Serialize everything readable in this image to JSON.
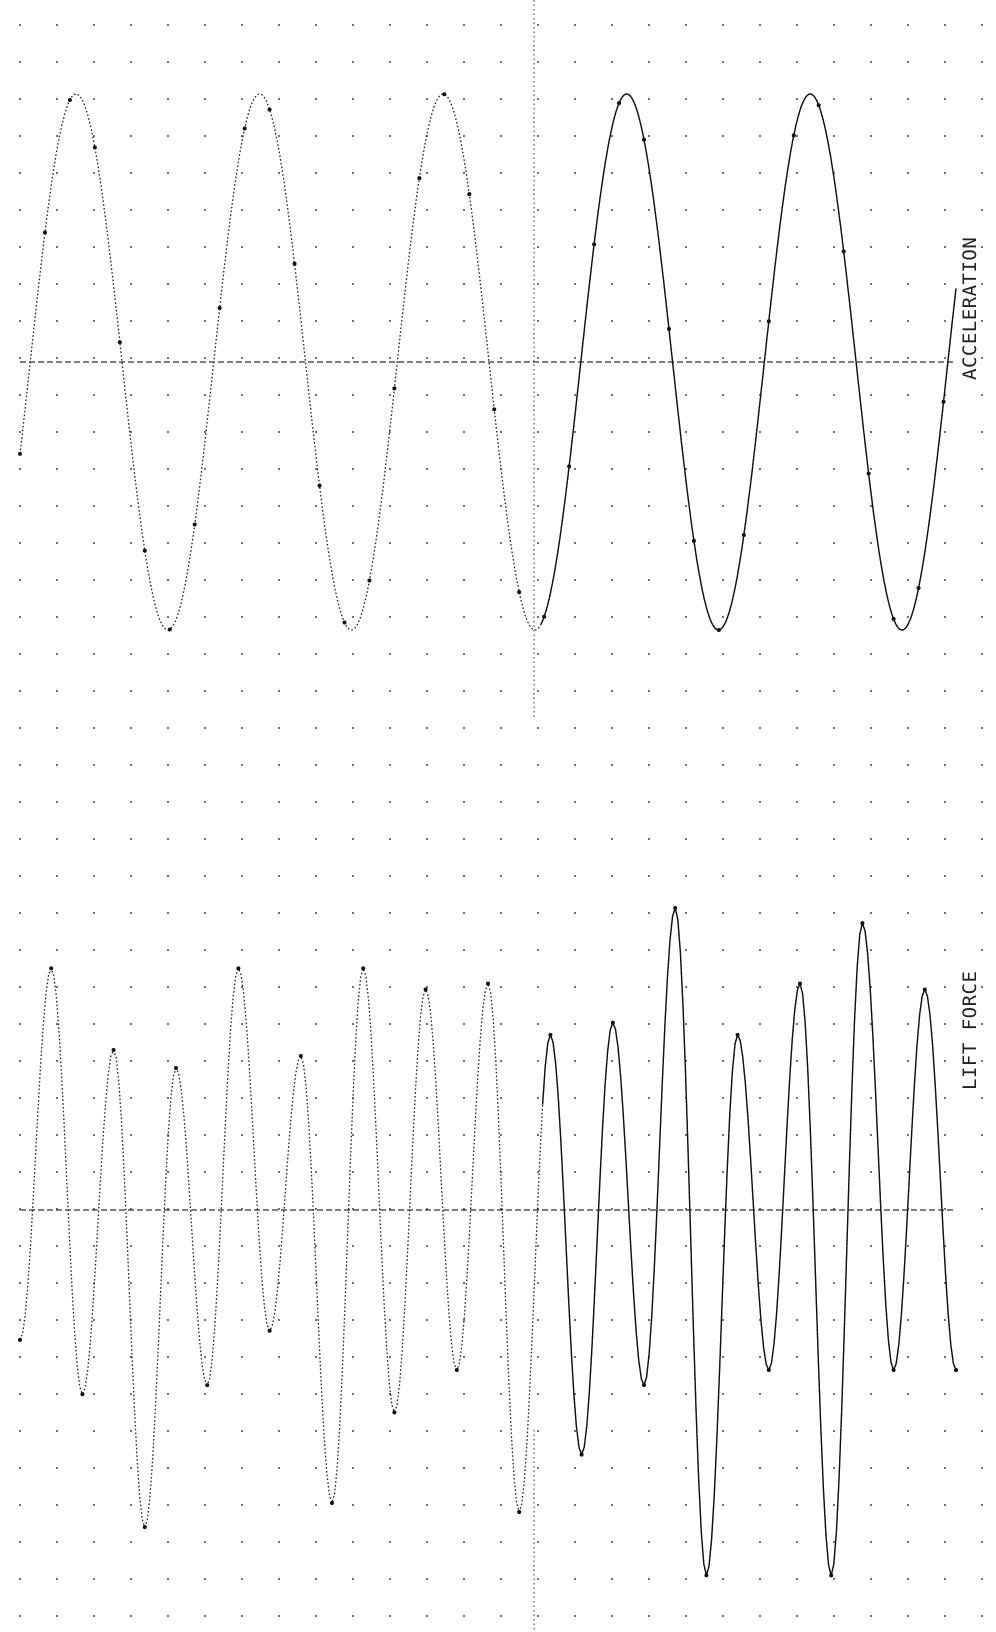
{
  "chart_data": [
    {
      "type": "line",
      "label": "ACCELERATION",
      "x": [
        0.0,
        0.5,
        1.0,
        1.5,
        2.0,
        2.5,
        3.0,
        3.5,
        4.0,
        4.5,
        5.0
      ],
      "series": [
        {
          "name": "ACCELERATION",
          "amplitude": 1.0,
          "cycles": 5.1,
          "values": [
            0.0,
            1.0,
            0.0,
            -1.0,
            0.0,
            1.0,
            0.0,
            -1.0,
            0.0,
            1.0,
            0.0
          ]
        }
      ],
      "ylim": [
        -1.0,
        1.0
      ],
      "grid": true
    },
    {
      "type": "line",
      "label": "LIFT FORCE",
      "peaks": [
        0.8,
        0.53,
        0.47,
        0.8,
        0.51,
        0.8,
        0.73,
        0.75,
        0.58,
        0.62,
        1.0,
        0.58,
        0.75,
        0.95,
        0.73
      ],
      "troughs": [
        -0.43,
        -0.61,
        -1.05,
        -0.58,
        -0.4,
        -0.97,
        -0.67,
        -0.53,
        -1.0,
        -0.81,
        -0.58,
        -1.21,
        -0.53,
        -1.21,
        -0.53
      ],
      "ylim": [
        -1.3,
        1.3
      ],
      "grid": true
    }
  ],
  "labels": {
    "accel": "ACCELERATION",
    "lift": "LIFT FORCE"
  },
  "colors": {
    "ink": "#222222",
    "paper": "#ffffff"
  }
}
